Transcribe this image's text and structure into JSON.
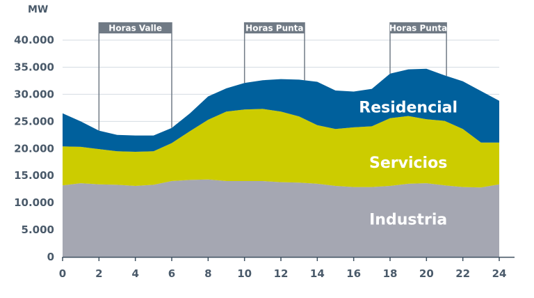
{
  "chart_data": {
    "type": "area",
    "stacked": true,
    "ylabel": "MW",
    "ylim": [
      0,
      42000
    ],
    "xlim": [
      0,
      24
    ],
    "grid": true,
    "x": [
      0,
      1,
      2,
      3,
      4,
      5,
      6,
      7,
      8,
      9,
      10,
      11,
      12,
      13,
      14,
      15,
      16,
      17,
      18,
      19,
      20,
      21,
      22,
      23,
      24
    ],
    "yticks": [
      0,
      5000,
      10000,
      15000,
      20000,
      25000,
      30000,
      35000,
      40000
    ],
    "ytick_labels": [
      "0",
      "5.000",
      "10.000",
      "15.000",
      "20.000",
      "25.000",
      "30.000",
      "35.000",
      "40.000"
    ],
    "xticks": [
      0,
      2,
      4,
      6,
      8,
      10,
      12,
      14,
      16,
      18,
      20,
      22,
      24
    ],
    "xtick_labels": [
      "0",
      "2",
      "4",
      "6",
      "8",
      "10",
      "12",
      "14",
      "16",
      "18",
      "20",
      "22",
      "24"
    ],
    "series": [
      {
        "name": "Industria",
        "color": "#a5a7b2",
        "label_x": 19,
        "label_y": 7000,
        "values": [
          13200,
          13600,
          13400,
          13300,
          13100,
          13300,
          14000,
          14200,
          14300,
          14000,
          14000,
          14000,
          13800,
          13700,
          13500,
          13100,
          12900,
          12900,
          13100,
          13500,
          13600,
          13200,
          12900,
          12800,
          13400
        ]
      },
      {
        "name": "Servicios",
        "color": "#cccc00",
        "label_x": 19,
        "label_y": 17500,
        "values": [
          7200,
          6700,
          6500,
          6200,
          6300,
          6200,
          7000,
          9000,
          11000,
          12800,
          13200,
          13300,
          13000,
          12200,
          10800,
          10500,
          11000,
          11200,
          12500,
          12500,
          11800,
          11900,
          10700,
          8300,
          7700
        ]
      },
      {
        "name": "Residencial",
        "color": "#00609c",
        "label_x": 19,
        "label_y": 27700,
        "values": [
          6100,
          4700,
          3400,
          3000,
          3000,
          2900,
          2800,
          3300,
          4300,
          4300,
          4900,
          5300,
          6000,
          6800,
          8000,
          7100,
          6600,
          6900,
          8200,
          8600,
          9300,
          8400,
          8800,
          9500,
          7700
        ]
      }
    ],
    "bands": [
      {
        "label": "Horas Valle",
        "start": 2,
        "end": 6
      },
      {
        "label": "Horas Punta",
        "start": 10,
        "end": 13.3
      },
      {
        "label": "Horas Punta",
        "start": 18,
        "end": 21.1
      }
    ]
  }
}
